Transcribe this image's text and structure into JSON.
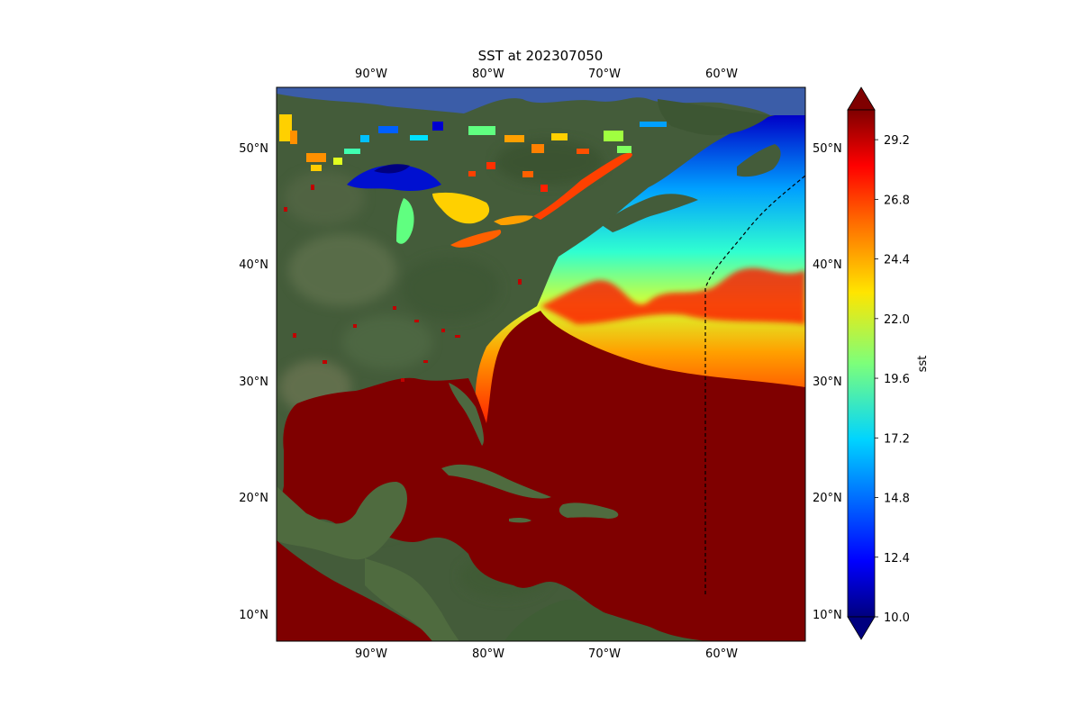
{
  "title": "SST at 202307050",
  "lon_labels": [
    "90°W",
    "80°W",
    "70°W",
    "60°W"
  ],
  "lat_labels": [
    "10°N",
    "20°N",
    "30°N",
    "40°N",
    "50°N"
  ],
  "colorbar": {
    "label": "sst",
    "ticks": [
      "29.2",
      "26.8",
      "24.4",
      "22.0",
      "19.6",
      "17.2",
      "14.8",
      "12.4",
      "10.0"
    ],
    "min": 10.0,
    "max": 30.4,
    "colormap": "jet",
    "extend": "both"
  },
  "chart_data": {
    "type": "heatmap",
    "title": "SST at 202307050",
    "variable": "sst",
    "x_ticks": [
      "90°W",
      "80°W",
      "70°W",
      "60°W"
    ],
    "y_ticks": [
      "10°N",
      "20°N",
      "30°N",
      "40°N",
      "50°N"
    ],
    "colorbar_ticks": [
      29.2,
      26.8,
      24.4,
      22.0,
      19.6,
      17.2,
      14.8,
      12.4,
      10.0
    ],
    "value_range": [
      10.0,
      30.4
    ],
    "colors": {
      "land": "#3f5a36",
      "warm_water": "#7f0000",
      "frame": "#2b3f73"
    }
  }
}
